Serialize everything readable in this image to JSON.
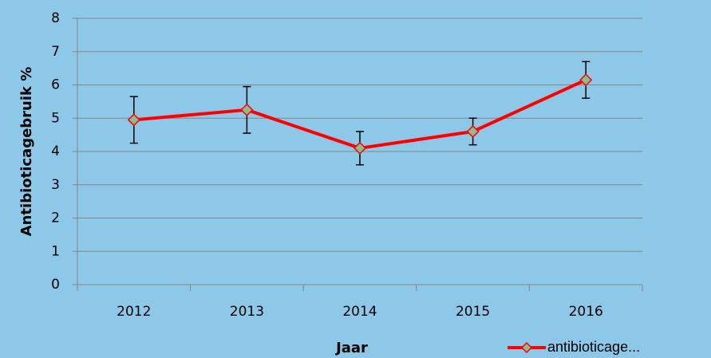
{
  "chart_data": {
    "type": "line",
    "categories": [
      "2012",
      "2013",
      "2014",
      "2015",
      "2016"
    ],
    "series": [
      {
        "name": "antibioticage...",
        "color": "#ff0000",
        "marker_color": "#8fbc8f",
        "values": [
          4.95,
          5.25,
          4.1,
          4.6,
          6.15
        ],
        "errors": [
          0.7,
          0.7,
          0.5,
          0.4,
          0.55
        ]
      }
    ],
    "ylim": [
      0,
      8
    ],
    "yticks": [
      0,
      1,
      2,
      3,
      4,
      5,
      6,
      7,
      8
    ],
    "grid": true,
    "ylabel": "Antibioticagebruik %",
    "xlabel": "Jaar",
    "legend": "bottom-right"
  }
}
